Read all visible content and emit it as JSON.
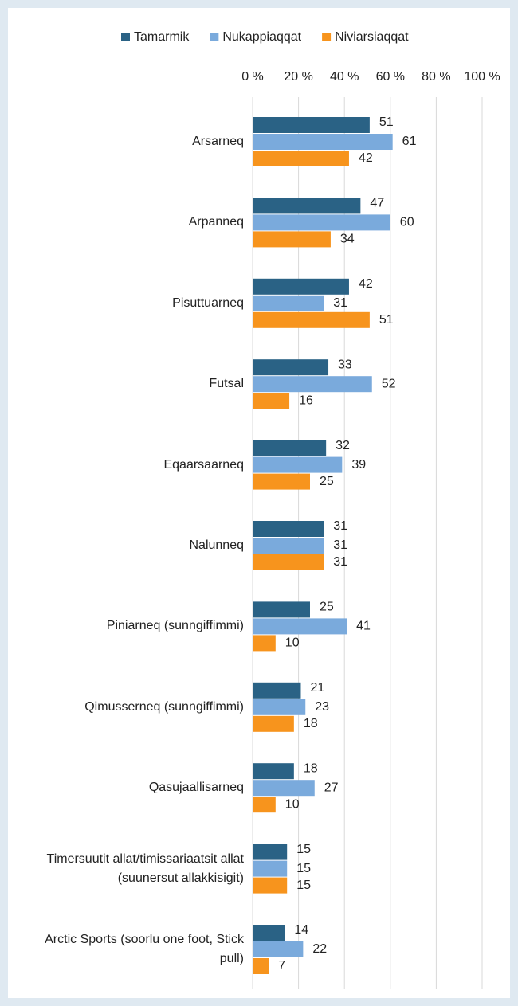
{
  "chart_data": {
    "type": "bar",
    "orientation": "horizontal",
    "categories": [
      "Arsarneq",
      "Arpanneq",
      "Pisuttuarneq",
      "Futsal",
      "Eqaarsaarneq",
      "Nalunneq",
      "Piniarneq (sunngiffimmi)",
      "Qimusserneq (sunngiffimmi)",
      "Qasujaallisarneq",
      "Timersuutit allat/timissariaatsit allat (suunersut allakkisigit)",
      "Arctic Sports (soorlu one foot, Stick pull)"
    ],
    "series": [
      {
        "name": "Tamarmik",
        "color": "#2a6285",
        "values": [
          51,
          47,
          42,
          33,
          32,
          31,
          25,
          21,
          18,
          15,
          14
        ]
      },
      {
        "name": "Nukappiaqqat",
        "color": "#7aaadc",
        "values": [
          61,
          60,
          31,
          52,
          39,
          31,
          41,
          23,
          27,
          15,
          22
        ]
      },
      {
        "name": "Niviarsiaqqat",
        "color": "#f7941d",
        "values": [
          42,
          34,
          51,
          16,
          25,
          31,
          10,
          18,
          10,
          15,
          7
        ]
      }
    ],
    "xlim": [
      0,
      100
    ],
    "xticks": [
      {
        "value": 0,
        "label": "0 %"
      },
      {
        "value": 20,
        "label": "20 %"
      },
      {
        "value": 40,
        "label": "40 %"
      },
      {
        "value": 60,
        "label": "60 %"
      },
      {
        "value": 80,
        "label": "80 %"
      },
      {
        "value": 100,
        "label": "100 %"
      }
    ],
    "grid": true,
    "legend": "top"
  }
}
